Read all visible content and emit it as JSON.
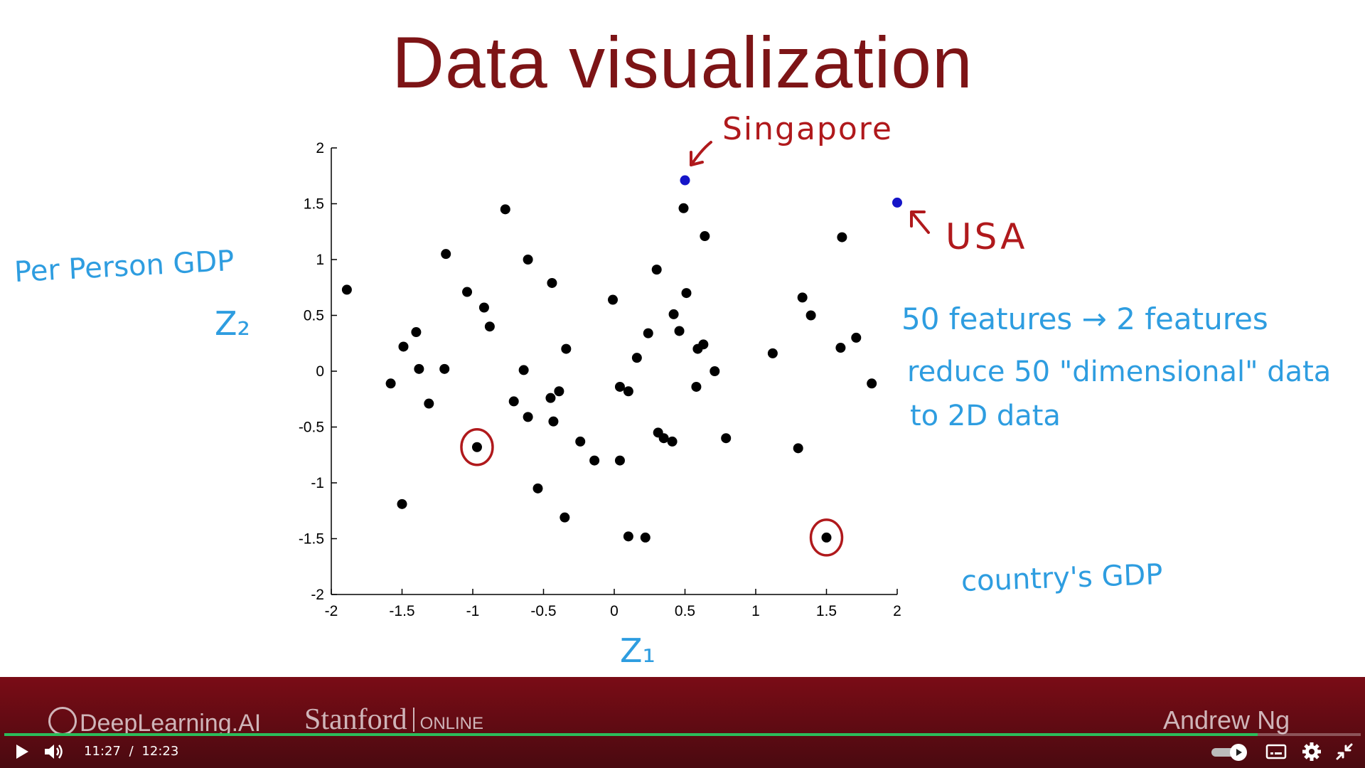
{
  "slide": {
    "title": "Data visualization",
    "annotations": {
      "y_axis_desc": "Per Person GDP",
      "y_axis_var": "Z₂",
      "x_axis_var": "Z₁",
      "singapore": "Singapore",
      "usa": "USA",
      "note_line1": "50 features → 2 features",
      "note_line2": "reduce 50 \"dimensional\" data",
      "note_line3": "to 2D data",
      "x_axis_desc": "country's GDP"
    }
  },
  "chart_data": {
    "type": "scatter",
    "xlim": [
      -2,
      2
    ],
    "ylim": [
      -2,
      2
    ],
    "xticks": [
      "-2",
      "-1.5",
      "-1",
      "-0.5",
      "0",
      "0.5",
      "1",
      "1.5",
      "2"
    ],
    "yticks": [
      "2",
      "1.5",
      "1",
      "0.5",
      "0",
      "-0.5",
      "-1",
      "-1.5",
      "-2"
    ],
    "xtick_values": [
      -2,
      -1.5,
      -1,
      -0.5,
      0,
      0.5,
      1,
      1.5,
      2
    ],
    "ytick_values": [
      2,
      1.5,
      1,
      0.5,
      0,
      -0.5,
      -1,
      -1.5,
      -2
    ],
    "grid": false,
    "point_color": "#000000",
    "highlight_color": "#1515c8",
    "circle_color": "#b0191c",
    "points": [
      [
        -1.89,
        0.73
      ],
      [
        -0.77,
        1.45
      ],
      [
        -1.19,
        1.05
      ],
      [
        -0.61,
        1.0
      ],
      [
        -1.04,
        0.71
      ],
      [
        -0.44,
        0.79
      ],
      [
        -0.92,
        0.57
      ],
      [
        -0.88,
        0.4
      ],
      [
        -1.4,
        0.35
      ],
      [
        -1.49,
        0.22
      ],
      [
        -1.38,
        0.02
      ],
      [
        -1.2,
        0.02
      ],
      [
        -1.58,
        -0.11
      ],
      [
        -1.31,
        -0.29
      ],
      [
        -0.34,
        0.2
      ],
      [
        -0.64,
        0.01
      ],
      [
        -0.39,
        -0.18
      ],
      [
        -0.45,
        -0.24
      ],
      [
        -0.71,
        -0.27
      ],
      [
        -0.61,
        -0.41
      ],
      [
        -0.43,
        -0.45
      ],
      [
        -0.24,
        -0.63
      ],
      [
        -0.14,
        -0.8
      ],
      [
        -0.54,
        -1.05
      ],
      [
        -0.35,
        -1.31
      ],
      [
        -1.5,
        -1.19
      ],
      [
        -0.97,
        -0.68
      ],
      [
        0.49,
        1.46
      ],
      [
        0.64,
        1.21
      ],
      [
        0.3,
        0.91
      ],
      [
        -0.01,
        0.64
      ],
      [
        0.51,
        0.7
      ],
      [
        0.42,
        0.51
      ],
      [
        0.24,
        0.34
      ],
      [
        0.46,
        0.36
      ],
      [
        0.63,
        0.24
      ],
      [
        0.59,
        0.2
      ],
      [
        0.16,
        0.12
      ],
      [
        0.71,
        0.0
      ],
      [
        0.04,
        -0.14
      ],
      [
        0.1,
        -0.18
      ],
      [
        0.58,
        -0.14
      ],
      [
        0.31,
        -0.55
      ],
      [
        0.35,
        -0.6
      ],
      [
        0.41,
        -0.63
      ],
      [
        0.79,
        -0.6
      ],
      [
        0.04,
        -0.8
      ],
      [
        0.1,
        -1.48
      ],
      [
        0.22,
        -1.49
      ],
      [
        1.61,
        1.2
      ],
      [
        1.33,
        0.66
      ],
      [
        1.39,
        0.5
      ],
      [
        1.12,
        0.16
      ],
      [
        1.6,
        0.21
      ],
      [
        1.71,
        0.3
      ],
      [
        1.82,
        -0.11
      ],
      [
        1.3,
        -0.69
      ],
      [
        1.5,
        -1.49
      ]
    ],
    "highlighted_points": [
      {
        "label": "Singapore",
        "x": 0.5,
        "y": 1.71
      },
      {
        "label": "USA",
        "x": 2.0,
        "y": 1.51
      }
    ],
    "circled_points": [
      [
        -0.97,
        -0.68
      ],
      [
        1.5,
        -1.49
      ]
    ]
  },
  "footer": {
    "brand1": "DeepLearning.AI",
    "brand2": "Stanford",
    "brand2_suffix": "ONLINE",
    "presenter": "Andrew Ng"
  },
  "player": {
    "current_time": "11:27",
    "separator": "/",
    "duration": "12:23",
    "progress_fraction": 0.924,
    "accent_color": "#2bbd5b",
    "icons": [
      "play-icon",
      "volume-icon",
      "autoplay-toggle",
      "captions-icon",
      "settings-icon",
      "exit-fullscreen-icon"
    ]
  }
}
